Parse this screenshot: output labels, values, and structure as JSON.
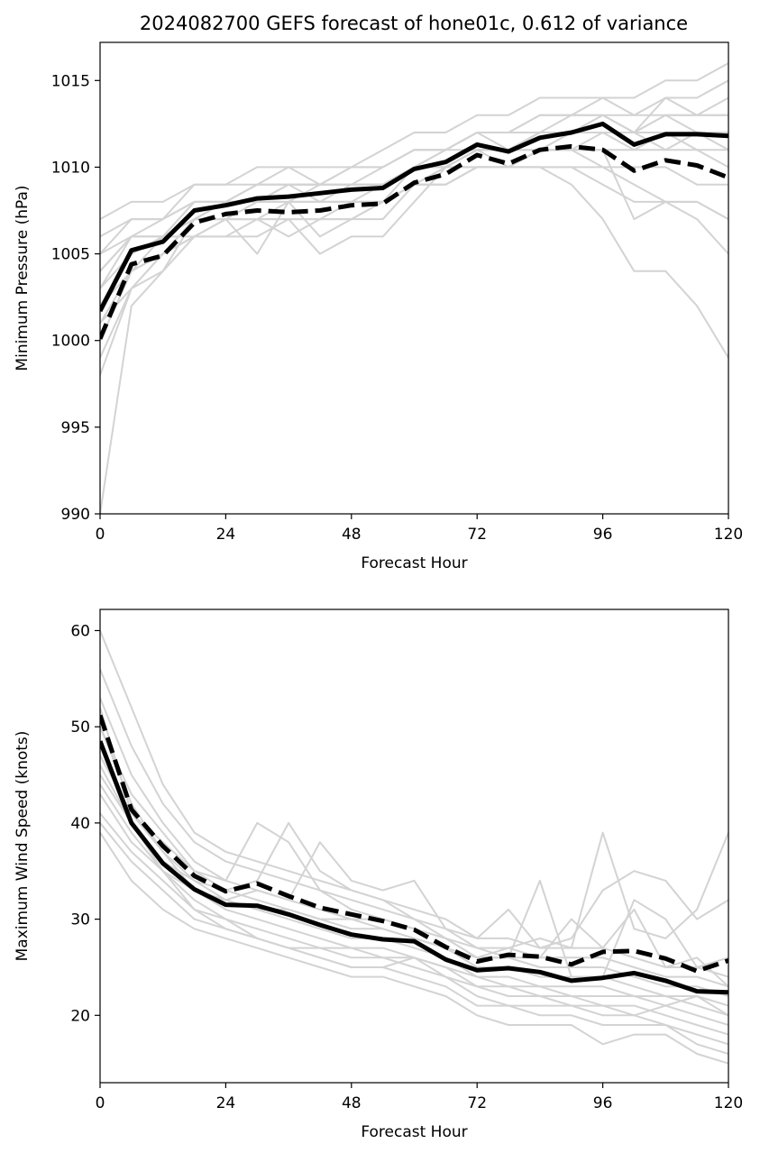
{
  "figure": {
    "title": "2024082700 GEFS forecast of hone01c, 0.612 of variance"
  },
  "chart_data": [
    {
      "type": "line",
      "xlabel": "Forecast Hour",
      "ylabel": "Minimum Pressure (hPa)",
      "xlim": [
        0,
        120
      ],
      "ylim": [
        990,
        1017.2
      ],
      "xticks": [
        0,
        24,
        48,
        72,
        96,
        120
      ],
      "yticks": [
        990,
        995,
        1000,
        1005,
        1010,
        1015
      ],
      "x": [
        0,
        6,
        12,
        18,
        24,
        30,
        36,
        42,
        48,
        54,
        60,
        66,
        72,
        78,
        84,
        90,
        96,
        102,
        108,
        114,
        120
      ],
      "grid": false,
      "colors": {
        "members": "#d3d3d3",
        "means": "#000000"
      },
      "series": [
        {
          "style": "solid",
          "values": [
            1001.7,
            1005.2,
            1005.7,
            1007.5,
            1007.8,
            1008.2,
            1008.3,
            1008.5,
            1008.7,
            1008.8,
            1009.9,
            1010.3,
            1011.3,
            1010.9,
            1011.7,
            1012.0,
            1012.5,
            1011.3,
            1011.9,
            1011.9,
            1011.8
          ]
        },
        {
          "style": "dashed",
          "values": [
            1000.1,
            1004.4,
            1004.9,
            1006.8,
            1007.3,
            1007.5,
            1007.4,
            1007.5,
            1007.8,
            1007.9,
            1009.1,
            1009.6,
            1010.7,
            1010.2,
            1011.0,
            1011.2,
            1011.0,
            1009.8,
            1010.4,
            1010.1,
            1009.4
          ]
        }
      ],
      "members": [
        [
          1007,
          1008,
          1008,
          1009,
          1009,
          1010,
          1010,
          1010,
          1010,
          1011,
          1012,
          1012,
          1013,
          1013,
          1014,
          1014,
          1014,
          1014,
          1015,
          1015,
          1016
        ],
        [
          1006,
          1007,
          1007,
          1008,
          1008,
          1009,
          1009,
          1009,
          1009,
          1010,
          1011,
          1011,
          1012,
          1012,
          1013,
          1013,
          1014,
          1013,
          1014,
          1014,
          1015
        ],
        [
          1005,
          1007,
          1007,
          1008,
          1008,
          1008,
          1009,
          1009,
          1010,
          1010,
          1011,
          1011,
          1012,
          1012,
          1012,
          1013,
          1013,
          1013,
          1013,
          1013,
          1014
        ],
        [
          1004,
          1006,
          1006,
          1008,
          1008,
          1008,
          1008,
          1009,
          1009,
          1009,
          1010,
          1011,
          1011,
          1011,
          1012,
          1012,
          1013,
          1012,
          1013,
          1013,
          1013
        ],
        [
          1003,
          1005,
          1006,
          1007,
          1008,
          1008,
          1008,
          1008,
          1009,
          1009,
          1010,
          1010,
          1011,
          1011,
          1012,
          1012,
          1012,
          1012,
          1012,
          1012,
          1012
        ],
        [
          1002,
          1005,
          1006,
          1007,
          1007,
          1008,
          1008,
          1008,
          1008,
          1009,
          1010,
          1010,
          1011,
          1011,
          1011,
          1012,
          1012,
          1011,
          1012,
          1012,
          1011
        ],
        [
          1001,
          1004,
          1005,
          1007,
          1007,
          1007,
          1008,
          1008,
          1008,
          1008,
          1009,
          1010,
          1011,
          1010,
          1011,
          1011,
          1011,
          1011,
          1011,
          1011,
          1010
        ],
        [
          1000,
          1004,
          1005,
          1006,
          1007,
          1007,
          1007,
          1007,
          1008,
          1008,
          1009,
          1010,
          1010,
          1010,
          1011,
          1011,
          1010,
          1010,
          1010,
          1009,
          1009
        ],
        [
          999,
          1003,
          1005,
          1006,
          1007,
          1007,
          1007,
          1007,
          1007,
          1008,
          1009,
          1009,
          1010,
          1010,
          1010,
          1010,
          1010,
          1009,
          1008,
          1008,
          1007
        ],
        [
          998,
          1003,
          1004,
          1006,
          1006,
          1007,
          1006,
          1007,
          1007,
          1007,
          1009,
          1009,
          1010,
          1010,
          1010,
          1010,
          1009,
          1008,
          1008,
          1007,
          1005
        ],
        [
          1003,
          1006,
          1006,
          1007,
          1007,
          1005,
          1008,
          1006,
          1007,
          1008,
          1009,
          1009,
          1010,
          1010,
          1010,
          1009,
          1007,
          1004,
          1004,
          1002,
          999
        ],
        [
          990,
          1002,
          1004,
          1007,
          1008,
          1009,
          1009,
          1008,
          1008,
          1008,
          1010,
          1010,
          1011,
          1011,
          1011,
          1011,
          1011,
          1007,
          1008,
          1008,
          1007
        ],
        [
          1004,
          1006,
          1007,
          1009,
          1009,
          1009,
          1010,
          1009,
          1009,
          1009,
          1010,
          1011,
          1012,
          1011,
          1012,
          1012,
          1012,
          1012,
          1011,
          1012,
          1012
        ],
        [
          1002,
          1004,
          1006,
          1006,
          1006,
          1006,
          1007,
          1005,
          1006,
          1006,
          1008,
          1010,
          1010,
          1010,
          1011,
          1011,
          1012,
          1012,
          1012,
          1011,
          1011
        ],
        [
          1005,
          1006,
          1006,
          1008,
          1008,
          1009,
          1009,
          1009,
          1010,
          1010,
          1011,
          1011,
          1012,
          1012,
          1013,
          1013,
          1013,
          1012,
          1014,
          1013,
          1013
        ],
        [
          1001,
          1003,
          1005,
          1007,
          1008,
          1008,
          1009,
          1009,
          1009,
          1009,
          1010,
          1010,
          1011,
          1011,
          1012,
          1012,
          1013,
          1012,
          1013,
          1012,
          1012
        ]
      ]
    },
    {
      "type": "line",
      "xlabel": "Forecast Hour",
      "ylabel": "Maximum Wind Speed (knots)",
      "xlim": [
        0,
        120
      ],
      "ylim": [
        13,
        62.2
      ],
      "xticks": [
        0,
        24,
        48,
        72,
        96,
        120
      ],
      "yticks": [
        20,
        30,
        40,
        50,
        60
      ],
      "x": [
        0,
        6,
        12,
        18,
        24,
        30,
        36,
        42,
        48,
        54,
        60,
        66,
        72,
        78,
        84,
        90,
        96,
        102,
        108,
        114,
        120
      ],
      "grid": false,
      "colors": {
        "members": "#d3d3d3",
        "means": "#000000"
      },
      "series": [
        {
          "style": "solid",
          "values": [
            48.5,
            40.0,
            35.8,
            33.1,
            31.5,
            31.4,
            30.5,
            29.4,
            28.4,
            27.9,
            27.7,
            25.8,
            24.7,
            24.9,
            24.5,
            23.6,
            23.9,
            24.4,
            23.6,
            22.5,
            22.4
          ]
        },
        {
          "style": "dashed",
          "values": [
            51.2,
            41.4,
            37.6,
            34.5,
            32.9,
            33.7,
            32.4,
            31.2,
            30.5,
            29.8,
            28.9,
            27.1,
            25.6,
            26.3,
            26.1,
            25.3,
            26.6,
            26.7,
            25.9,
            24.6,
            25.7
          ]
        }
      ],
      "members": [
        [
          60,
          52,
          44,
          39,
          37,
          36,
          35,
          34,
          33,
          32,
          31,
          30,
          28,
          28,
          27,
          27,
          27,
          26,
          25,
          25,
          24
        ],
        [
          56,
          48,
          42,
          38,
          36,
          35,
          34,
          33,
          32,
          31,
          30,
          29,
          27,
          27,
          26,
          26,
          26,
          25,
          24,
          24,
          23
        ],
        [
          53,
          45,
          40,
          36,
          34,
          33,
          32,
          31,
          30,
          30,
          29,
          28,
          26,
          26,
          25,
          25,
          25,
          24,
          23,
          23,
          22
        ],
        [
          50,
          43,
          39,
          35,
          33,
          32,
          31,
          30,
          29,
          29,
          28,
          27,
          25,
          25,
          24,
          24,
          24,
          23,
          22,
          22,
          21
        ],
        [
          47,
          41,
          37,
          34,
          32,
          31,
          30,
          29,
          28,
          28,
          27,
          26,
          24,
          24,
          23,
          23,
          23,
          22,
          22,
          21,
          20
        ],
        [
          45,
          40,
          36,
          33,
          31,
          30,
          29,
          28,
          27,
          27,
          26,
          25,
          24,
          23,
          23,
          22,
          22,
          22,
          21,
          20,
          19
        ],
        [
          43,
          38,
          35,
          32,
          30,
          29,
          28,
          27,
          27,
          26,
          26,
          25,
          23,
          22,
          22,
          21,
          21,
          21,
          20,
          19,
          18
        ],
        [
          41,
          37,
          34,
          31,
          29,
          28,
          27,
          27,
          26,
          26,
          25,
          24,
          22,
          21,
          21,
          21,
          20,
          20,
          19,
          18,
          17
        ],
        [
          40,
          36,
          33,
          30,
          29,
          28,
          27,
          26,
          25,
          25,
          24,
          23,
          21,
          21,
          20,
          20,
          19,
          19,
          19,
          17,
          16
        ],
        [
          39,
          34,
          31,
          29,
          28,
          27,
          26,
          25,
          24,
          24,
          23,
          22,
          20,
          19,
          19,
          19,
          17,
          18,
          18,
          16,
          15
        ],
        [
          52,
          41,
          38,
          35,
          34,
          40,
          38,
          33,
          31,
          30,
          29,
          28,
          26,
          27,
          28,
          27,
          39,
          29,
          28,
          31,
          39
        ],
        [
          46,
          40,
          36,
          34,
          33,
          34,
          40,
          35,
          33,
          32,
          30,
          28,
          27,
          26,
          34,
          24,
          24,
          32,
          30,
          25,
          26
        ],
        [
          50,
          42,
          37,
          33,
          32,
          33,
          32,
          38,
          34,
          33,
          34,
          29,
          28,
          31,
          27,
          28,
          33,
          35,
          34,
          30,
          32
        ],
        [
          44,
          39,
          35,
          33,
          32,
          31,
          31,
          30,
          30,
          29,
          28,
          27,
          26,
          26,
          26,
          30,
          27,
          31,
          25,
          26,
          23
        ],
        [
          48,
          40,
          35,
          31,
          30,
          28,
          27,
          26,
          25,
          25,
          26,
          24,
          23,
          23,
          22,
          22,
          21,
          20,
          21,
          22,
          20
        ]
      ]
    }
  ]
}
